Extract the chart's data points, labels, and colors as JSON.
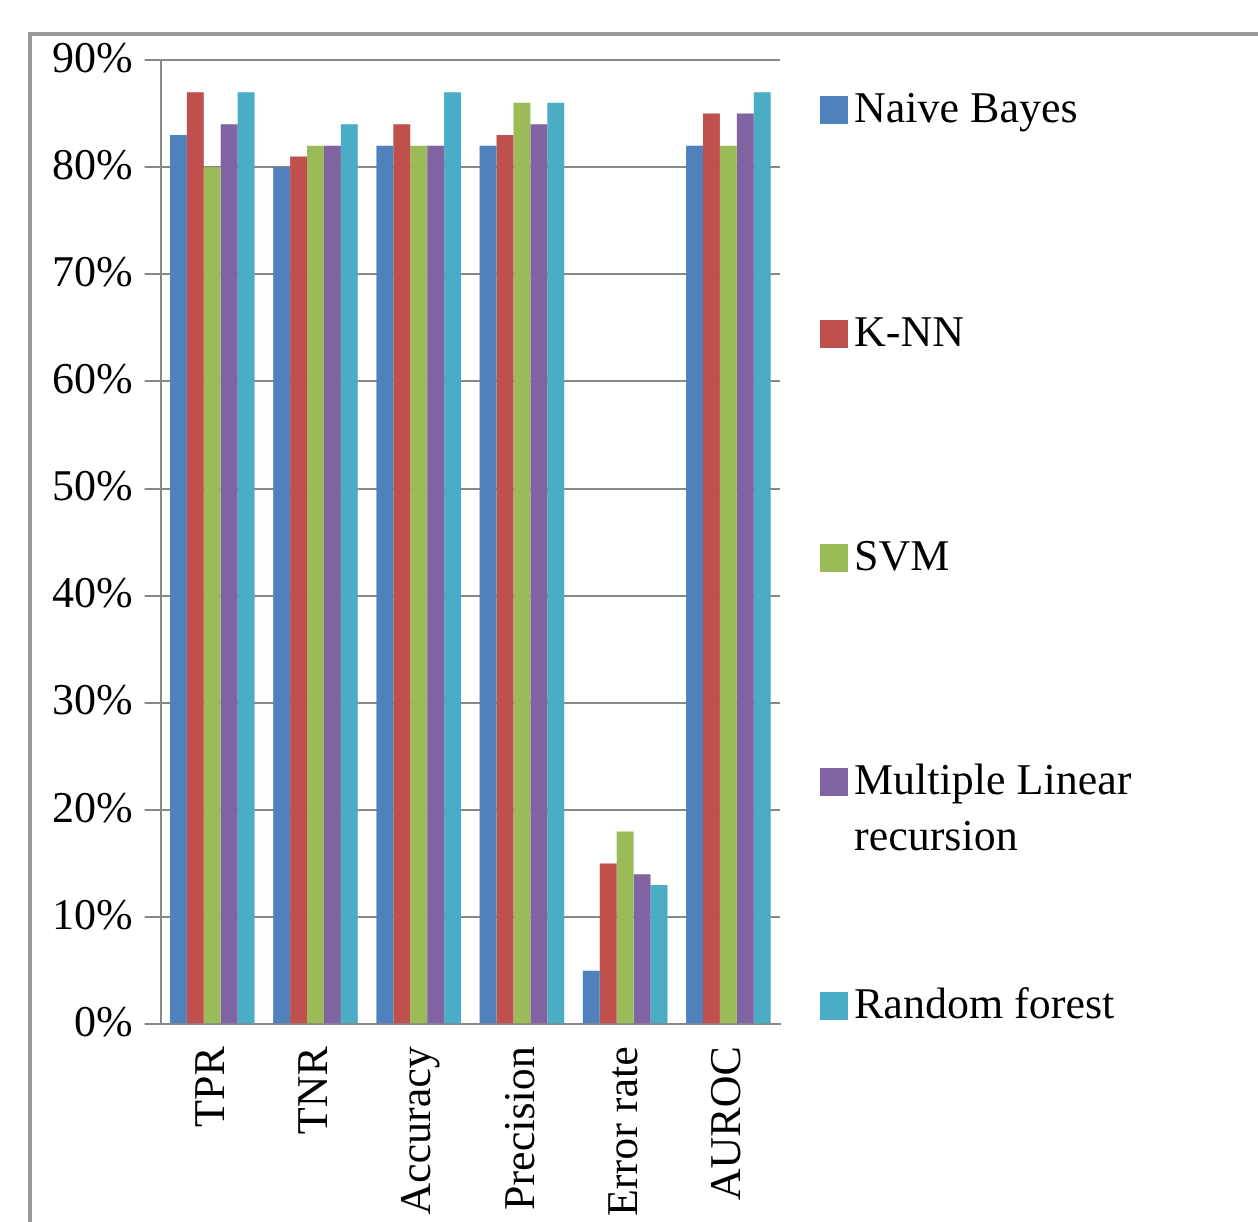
{
  "chart_data": {
    "type": "bar",
    "categories": [
      "TPR",
      "TNR",
      "Accuracy",
      "Precision",
      "Error rate",
      "AUROC"
    ],
    "series": [
      {
        "name": "Naive Bayes",
        "color": "#4f81bd",
        "values": [
          83,
          80,
          82,
          82,
          5,
          82
        ]
      },
      {
        "name": "K-NN",
        "color": "#c0504d",
        "values": [
          87,
          81,
          84,
          83,
          15,
          85
        ]
      },
      {
        "name": "SVM",
        "color": "#9bbb59",
        "values": [
          80,
          82,
          82,
          86,
          18,
          82
        ]
      },
      {
        "name": "Multiple Linear recursion",
        "color": "#8064a2",
        "values": [
          84,
          82,
          82,
          84,
          14,
          85
        ]
      },
      {
        "name": "Random forest",
        "color": "#4bacc6",
        "values": [
          87,
          84,
          87,
          86,
          13,
          87
        ]
      }
    ],
    "ylim": [
      0,
      90
    ],
    "yticks": [
      {
        "value": 0,
        "label": "0%"
      },
      {
        "value": 10,
        "label": "10%"
      },
      {
        "value": 20,
        "label": "20%"
      },
      {
        "value": 30,
        "label": "30%"
      },
      {
        "value": 40,
        "label": "40%"
      },
      {
        "value": 50,
        "label": "50%"
      },
      {
        "value": 60,
        "label": "60%"
      },
      {
        "value": 70,
        "label": "70%"
      },
      {
        "value": 80,
        "label": "80%"
      },
      {
        "value": 90,
        "label": "90%"
      }
    ],
    "grid": "y",
    "legend": "right"
  }
}
